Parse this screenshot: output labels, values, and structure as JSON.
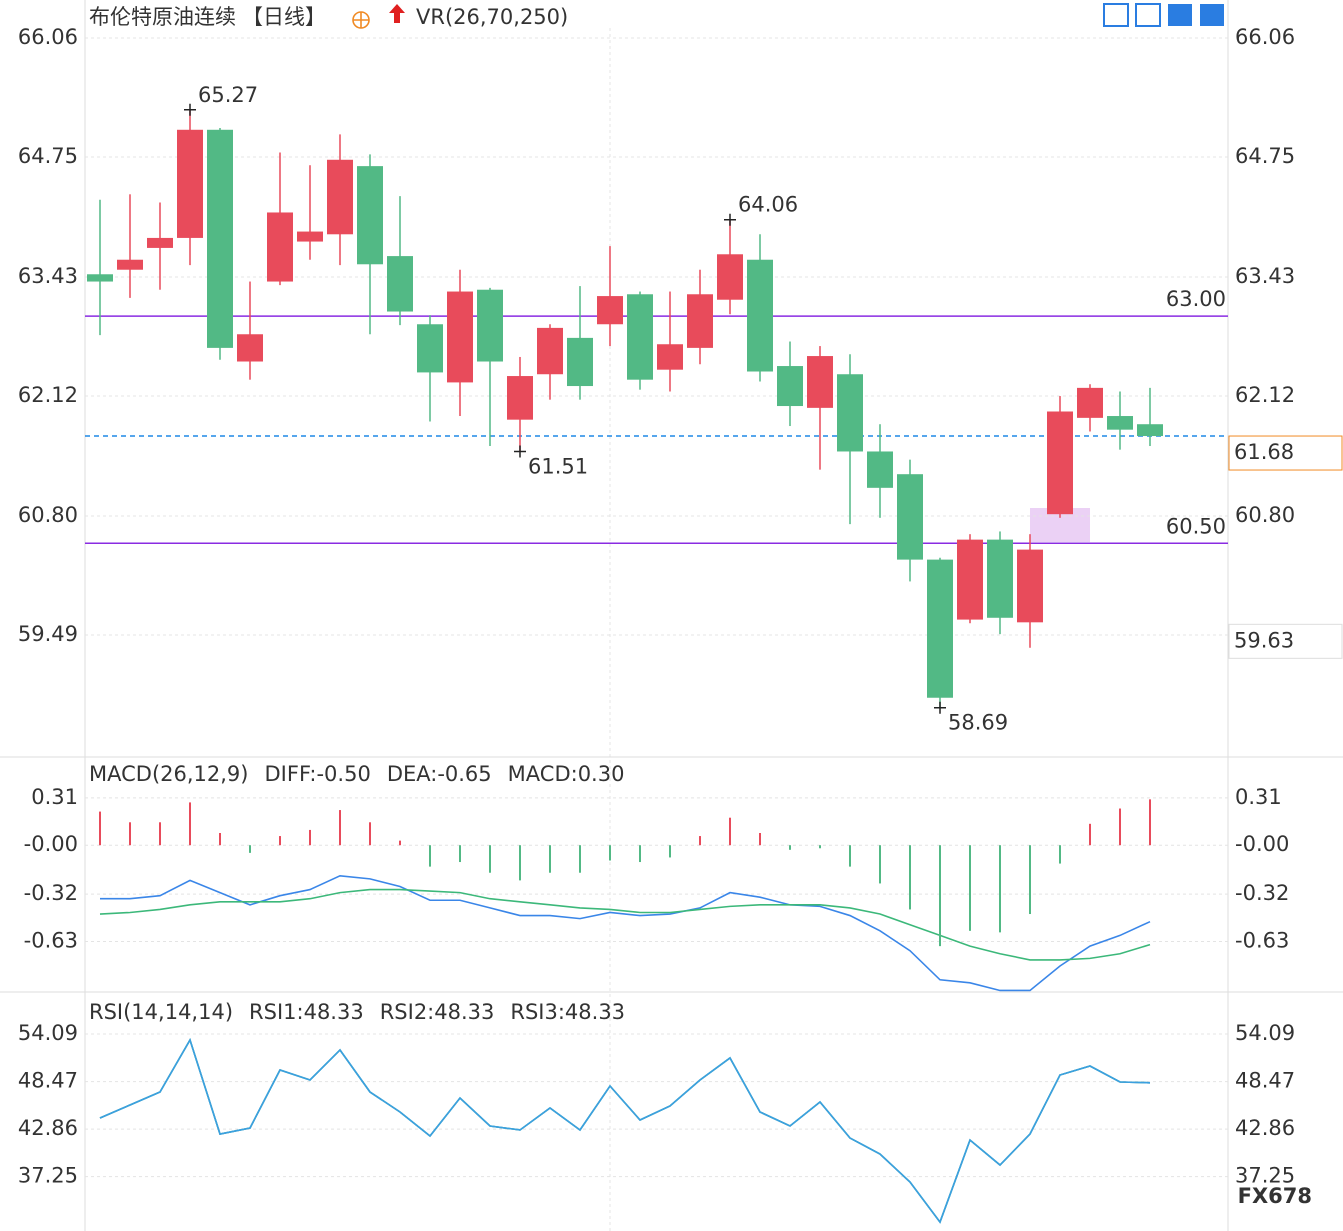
{
  "chart_data": [
    {
      "type": "candlestick",
      "title": "布伦特原油连续",
      "period": "【日线】",
      "indicator": "VR(26,70,250)",
      "open": [
        63.46,
        63.51,
        63.75,
        63.86,
        65.05,
        62.5,
        63.38,
        63.82,
        63.9,
        64.65,
        63.66,
        62.91,
        62.27,
        63.29,
        61.86,
        62.36,
        62.76,
        62.91,
        63.24,
        62.41,
        62.65,
        63.18,
        63.62,
        62.45,
        61.99,
        62.36,
        61.51,
        61.26,
        60.32,
        59.66,
        60.54,
        59.63,
        60.82,
        61.88,
        61.9,
        61.81
      ],
      "high": [
        64.28,
        64.34,
        64.25,
        65.27,
        65.07,
        63.38,
        64.8,
        64.66,
        65.0,
        64.78,
        64.32,
        63.01,
        63.51,
        63.31,
        62.55,
        62.91,
        63.33,
        63.77,
        63.27,
        63.27,
        63.51,
        64.06,
        63.9,
        62.72,
        62.67,
        62.58,
        61.81,
        61.42,
        60.34,
        60.6,
        60.63,
        60.6,
        62.12,
        62.25,
        62.17,
        62.21
      ],
      "low": [
        62.79,
        63.2,
        63.29,
        63.56,
        62.52,
        62.3,
        63.34,
        63.62,
        63.56,
        62.8,
        62.9,
        61.84,
        61.9,
        61.57,
        61.51,
        62.08,
        62.08,
        62.67,
        62.19,
        62.17,
        62.47,
        63.02,
        62.28,
        61.79,
        61.31,
        60.71,
        60.78,
        60.08,
        58.69,
        59.62,
        59.5,
        59.35,
        60.78,
        61.73,
        61.53,
        61.57
      ],
      "close": [
        63.38,
        63.62,
        63.86,
        65.05,
        62.65,
        62.8,
        64.14,
        63.93,
        64.72,
        63.57,
        63.05,
        62.38,
        63.27,
        62.5,
        62.34,
        62.87,
        62.23,
        63.22,
        62.3,
        62.69,
        63.24,
        63.68,
        62.39,
        62.01,
        62.56,
        61.51,
        61.11,
        60.32,
        58.8,
        60.54,
        59.68,
        60.43,
        61.95,
        62.21,
        61.75,
        61.68
      ],
      "up_color": "#e84b5b",
      "down_color": "#52b985",
      "ylim": [
        58.17,
        66.17
      ],
      "yticks": [
        66.06,
        64.75,
        63.43,
        62.12,
        {
          "value": 60.8,
          "label": "60.80"
        },
        59.49
      ],
      "levels": [
        {
          "value": 63,
          "label": "63.00"
        },
        {
          "value": 60.5,
          "label": "60.50"
        }
      ],
      "level_color": "#8a2be2",
      "last_price": 61.68,
      "last_price_color": "#1e88e5",
      "price_label_color": "#f08a24",
      "price_labels": [
        59.63
      ],
      "high_labels": [
        65.27,
        64.06
      ],
      "low_labels": [
        61.51,
        58.69
      ]
    },
    {
      "type": "macd",
      "title": "MACD(26,12,9)",
      "series": [
        {
          "name": "DIFF:-0.50",
          "color": "#3a86e8",
          "values": [
            -0.35,
            -0.35,
            -0.33,
            -0.23,
            -0.31,
            -0.39,
            -0.33,
            -0.29,
            -0.2,
            -0.22,
            -0.27,
            -0.36,
            -0.36,
            -0.41,
            -0.46,
            -0.46,
            -0.48,
            -0.44,
            -0.46,
            -0.45,
            -0.41,
            -0.31,
            -0.34,
            -0.39,
            -0.4,
            -0.46,
            -0.56,
            -0.69,
            -0.88,
            -0.9,
            -0.95,
            -0.95,
            -0.79,
            -0.66,
            -0.59,
            -0.5
          ]
        },
        {
          "name": "DEA:-0.65",
          "color": "#3cb87a",
          "values": [
            -0.45,
            -0.44,
            -0.42,
            -0.39,
            -0.37,
            -0.37,
            -0.37,
            -0.35,
            -0.31,
            -0.29,
            -0.29,
            -0.3,
            -0.31,
            -0.35,
            -0.37,
            -0.39,
            -0.41,
            -0.42,
            -0.44,
            -0.44,
            -0.42,
            -0.4,
            -0.39,
            -0.39,
            -0.39,
            -0.41,
            -0.45,
            -0.52,
            -0.59,
            -0.66,
            -0.71,
            -0.75,
            -0.75,
            -0.74,
            -0.71,
            -0.65
          ]
        },
        {
          "name": "MACD:0.30",
          "color": "#5aa9e6",
          "up_color": "#e84b5b",
          "down_color": "#52b985",
          "values": [
            0.22,
            0.15,
            0.15,
            0.28,
            0.08,
            -0.05,
            0.06,
            0.1,
            0.23,
            0.15,
            0.03,
            -0.14,
            -0.11,
            -0.18,
            -0.23,
            -0.18,
            -0.18,
            -0.1,
            -0.11,
            -0.08,
            0.06,
            0.18,
            0.08,
            -0.03,
            -0.02,
            -0.14,
            -0.25,
            -0.42,
            -0.66,
            -0.56,
            -0.57,
            -0.45,
            -0.12,
            0.14,
            0.24,
            0.3
          ]
        }
      ],
      "ylim": [
        -0.96,
        0.42
      ],
      "yticks": [
        0.31,
        {
          "value": 0,
          "label": "-0.00"
        },
        -0.32,
        -0.63
      ]
    },
    {
      "type": "rsi",
      "title": "RSI(14,14,14)",
      "series": [
        {
          "name": "RSI1:48.33",
          "color": "#3a86e8",
          "values": [
            44.17,
            45.71,
            47.24,
            53.38,
            42.28,
            42.99,
            49.84,
            48.66,
            52.2,
            47.24,
            44.88,
            42.05,
            46.53,
            43.23,
            42.76,
            45.35,
            42.76,
            47.95,
            43.94,
            45.59,
            48.66,
            51.26,
            44.88,
            43.23,
            46.06,
            41.81,
            39.92,
            36.62,
            31.89,
            41.57,
            38.62,
            42.28,
            49.25,
            50.31,
            48.42,
            48.33
          ]
        },
        {
          "name": "RSI2:48.33",
          "color": "#5cc08a",
          "values": [
            44.17,
            45.71,
            47.24,
            53.38,
            42.28,
            42.99,
            49.84,
            48.66,
            52.2,
            47.24,
            44.88,
            42.05,
            46.53,
            43.23,
            42.76,
            45.35,
            42.76,
            47.95,
            43.94,
            45.59,
            48.66,
            51.26,
            44.88,
            43.23,
            46.06,
            41.81,
            39.92,
            36.62,
            31.89,
            41.57,
            38.62,
            42.28,
            49.25,
            50.31,
            48.42,
            48.33
          ]
        },
        {
          "name": "RSI3:48.33",
          "color": "#3ba0e0",
          "values": [
            44.17,
            45.71,
            47.24,
            53.38,
            42.28,
            42.99,
            49.84,
            48.66,
            52.2,
            47.24,
            44.88,
            42.05,
            46.53,
            43.23,
            42.76,
            45.35,
            42.76,
            47.95,
            43.94,
            45.59,
            48.66,
            51.26,
            44.88,
            43.23,
            46.06,
            41.81,
            39.92,
            36.62,
            31.89,
            41.57,
            38.62,
            42.28,
            49.25,
            50.31,
            48.42,
            48.33
          ]
        }
      ],
      "ylim": [
        31.19,
        58.1
      ],
      "yticks": [
        54.09,
        48.47,
        42.86,
        37.25
      ]
    },
    {
      "type": "watermark",
      "text": "FX678"
    }
  ]
}
